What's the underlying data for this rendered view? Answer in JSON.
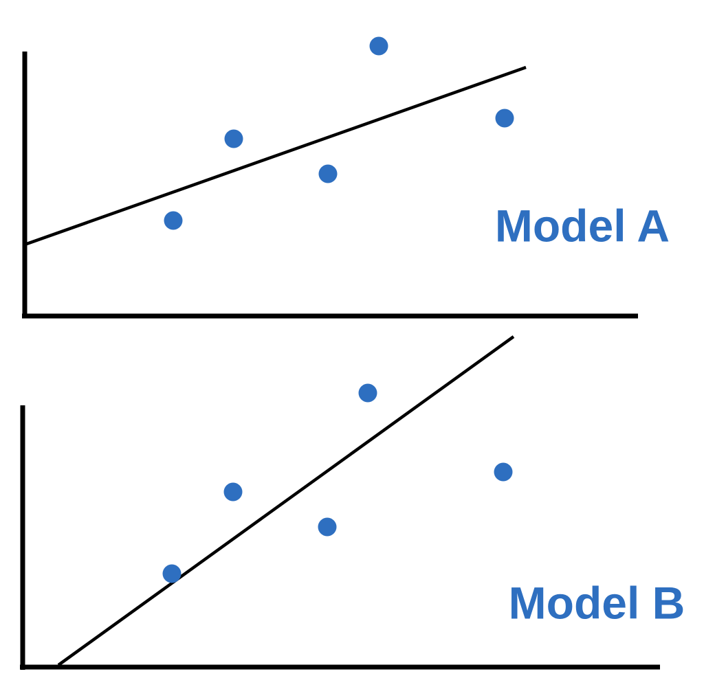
{
  "panels": [
    {
      "label": "Model A"
    },
    {
      "label": "Model B"
    }
  ]
}
